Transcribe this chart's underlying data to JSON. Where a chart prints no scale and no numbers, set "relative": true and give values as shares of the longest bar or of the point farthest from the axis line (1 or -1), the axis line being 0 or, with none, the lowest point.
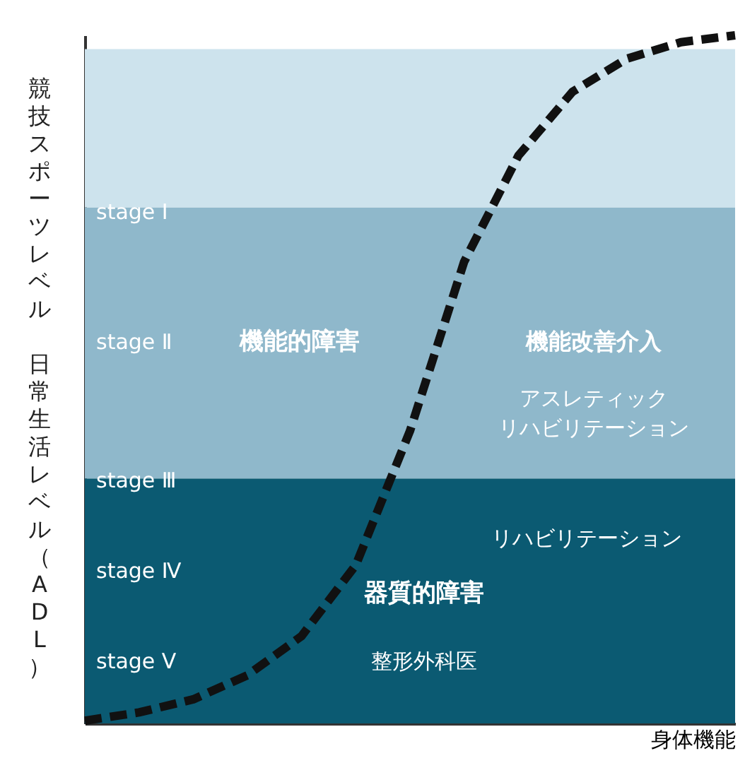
{
  "chart_data": {
    "type": "line",
    "relative": true,
    "xlabel": "身体機能",
    "ylabel": "競技スポーツレベル",
    "categories": [
      null,
      null,
      null,
      null,
      null,
      null,
      null,
      null,
      null,
      null,
      null,
      null,
      null
    ],
    "series": [
      {
        "color": "#111111",
        "values": [
          0.004,
          0.016,
          0.035,
          0.07,
          0.127,
          0.23,
          0.425,
          0.671,
          0.825,
          0.918,
          0.966,
          0.99,
          1.0
        ]
      }
    ],
    "line_style": "dashed",
    "marker": "none",
    "grid": false,
    "tick_labels": false,
    "bands": [
      {
        "axis": "y",
        "from": 0,
        "to": 0.356,
        "color": "#0b5a72"
      },
      {
        "axis": "y",
        "from": 0.356,
        "to": 0.75,
        "color": "#8fb8cb"
      },
      {
        "axis": "y",
        "from": 0.75,
        "to": 0.98,
        "color": "#cde3ed"
      }
    ],
    "annotations": [
      "stage Ⅰ",
      "stage Ⅱ",
      "stage Ⅲ",
      "stage Ⅳ",
      "stage Ⅴ",
      "機能的障害",
      "機能改善介入",
      "アスレティック",
      "リハビリテーション",
      "リハビリテーション",
      "器質的障害",
      "整形外科医",
      "日常生活レベル（ADL）"
    ]
  }
}
